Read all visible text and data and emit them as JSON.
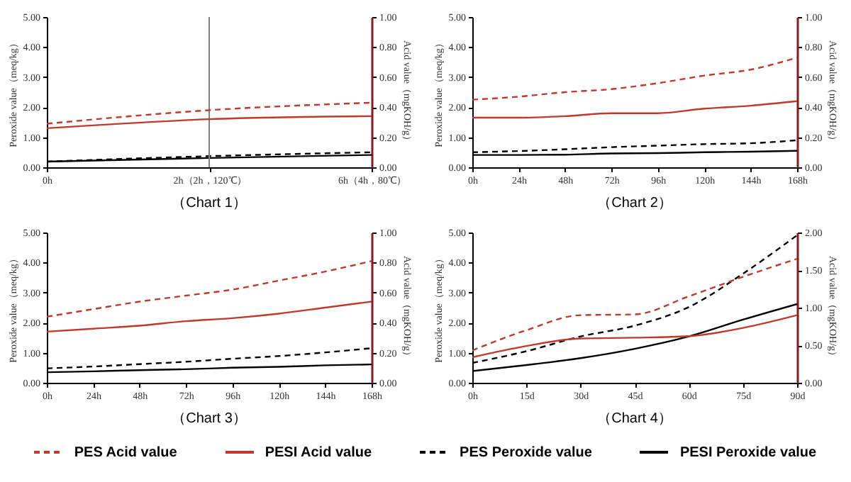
{
  "chart_data": [
    {
      "type": "line",
      "title": "（Chart 1）",
      "ylabel": "Peroxide value（meq/kg）",
      "y2label": "Acid value（mgKOH/g）",
      "categories": [
        "0h",
        "2h（2h，120℃）",
        "6h（4h，80℃）"
      ],
      "ylim": [
        0,
        5
      ],
      "yticks": [
        {
          "value": 0,
          "label": "0.00"
        },
        {
          "value": 1,
          "label": "1.00"
        },
        {
          "value": 2,
          "label": "2.00"
        },
        {
          "value": 3,
          "label": "3.00"
        },
        {
          "value": 4,
          "label": "4.00"
        },
        {
          "value": 5,
          "label": "5.00"
        }
      ],
      "y2lim": [
        0,
        1
      ],
      "y2ticks": [
        {
          "value": 0,
          "label": "0.00"
        },
        {
          "value": 0.2,
          "label": "0.20"
        },
        {
          "value": 0.4,
          "label": "0.40"
        },
        {
          "value": 0.6,
          "label": "0.60"
        },
        {
          "value": 0.8,
          "label": "0.80"
        },
        {
          "value": 1,
          "label": "1.00"
        }
      ],
      "grid": false,
      "legend": "bottom",
      "ref_lines": [
        {
          "axis": "x",
          "value": "2h（2h，120℃）",
          "color": "#808080"
        }
      ],
      "series": [
        {
          "name": "PES Acid value",
          "color": "#c0392b",
          "axis": "y2",
          "line_style": "dashed",
          "values": [
            0.29,
            0.38,
            0.43
          ]
        },
        {
          "name": "PESI Acid value",
          "color": "#c0392b",
          "axis": "y2",
          "line_style": "solid",
          "values": [
            0.26,
            0.32,
            0.34
          ]
        },
        {
          "name": "PES Peroxide value",
          "color": "#000000",
          "line_style": "dashed",
          "values": [
            0.19,
            0.37,
            0.5
          ]
        },
        {
          "name": "PESI Peroxide value",
          "color": "#000000",
          "line_style": "solid",
          "values": [
            0.19,
            0.31,
            0.41
          ]
        }
      ]
    },
    {
      "type": "line",
      "title": "（Chart 2）",
      "ylabel": "Peroxide value（meq/kg）",
      "y2label": "Acid value（mgKOH/g）",
      "categories": [
        "0h",
        "24h",
        "48h",
        "72h",
        "96h",
        "120h",
        "144h",
        "168h"
      ],
      "ylim": [
        0,
        5
      ],
      "yticks": [
        {
          "value": 0,
          "label": "0.00"
        },
        {
          "value": 1,
          "label": "1.00"
        },
        {
          "value": 2,
          "label": "2.00"
        },
        {
          "value": 3,
          "label": "3.00"
        },
        {
          "value": 4,
          "label": "4.00"
        },
        {
          "value": 5,
          "label": "5.00"
        }
      ],
      "y2lim": [
        0,
        1
      ],
      "y2ticks": [
        {
          "value": 0,
          "label": "0.00"
        },
        {
          "value": 0.2,
          "label": "0.20"
        },
        {
          "value": 0.4,
          "label": "0.40"
        },
        {
          "value": 0.6,
          "label": "0.60"
        },
        {
          "value": 0.8,
          "label": "0.80"
        },
        {
          "value": 1,
          "label": "1.00"
        }
      ],
      "grid": false,
      "legend": false,
      "series": [
        {
          "color": "#c0392b",
          "axis": "y2",
          "line_style": "dashed",
          "values": [
            0.45,
            0.47,
            0.5,
            0.52,
            0.56,
            0.61,
            0.65,
            0.73
          ]
        },
        {
          "color": "#c0392b",
          "axis": "y2",
          "line_style": "solid",
          "values": [
            0.33,
            0.33,
            0.34,
            0.36,
            0.36,
            0.39,
            0.41,
            0.44
          ]
        },
        {
          "color": "#000000",
          "line_style": "dashed",
          "values": [
            0.5,
            0.54,
            0.6,
            0.67,
            0.72,
            0.77,
            0.8,
            0.9
          ]
        },
        {
          "color": "#000000",
          "line_style": "solid",
          "values": [
            0.41,
            0.41,
            0.42,
            0.46,
            0.47,
            0.5,
            0.52,
            0.55
          ]
        }
      ]
    },
    {
      "type": "line",
      "title": "（Chart 3）",
      "ylabel": "Peroxide value（meq/kg）",
      "y2label": "Acid value（mgKOH/g）",
      "categories": [
        "0h",
        "24h",
        "48h",
        "72h",
        "96h",
        "120h",
        "144h",
        "168h"
      ],
      "ylim": [
        0,
        5
      ],
      "yticks": [
        {
          "value": 0,
          "label": "0.00"
        },
        {
          "value": 1,
          "label": "1.00"
        },
        {
          "value": 2,
          "label": "2.00"
        },
        {
          "value": 3,
          "label": "3.00"
        },
        {
          "value": 4,
          "label": "4.00"
        },
        {
          "value": 5,
          "label": "5.00"
        }
      ],
      "y2lim": [
        0,
        1
      ],
      "y2ticks": [
        {
          "value": 0,
          "label": "0.00"
        },
        {
          "value": 0.2,
          "label": "0.20"
        },
        {
          "value": 0.4,
          "label": "0.40"
        },
        {
          "value": 0.6,
          "label": "0.60"
        },
        {
          "value": 0.8,
          "label": "0.80"
        },
        {
          "value": 1,
          "label": "1.00"
        }
      ],
      "grid": false,
      "legend": false,
      "series": [
        {
          "color": "#c0392b",
          "axis": "y2",
          "line_style": "dashed",
          "values": [
            0.44,
            0.49,
            0.54,
            0.58,
            0.62,
            0.68,
            0.74,
            0.81
          ]
        },
        {
          "color": "#c0392b",
          "axis": "y2",
          "line_style": "solid",
          "values": [
            0.34,
            0.36,
            0.38,
            0.41,
            0.43,
            0.46,
            0.5,
            0.54
          ]
        },
        {
          "color": "#000000",
          "line_style": "dashed",
          "values": [
            0.48,
            0.54,
            0.62,
            0.7,
            0.8,
            0.89,
            1.01,
            1.15
          ]
        },
        {
          "color": "#000000",
          "line_style": "solid",
          "values": [
            0.35,
            0.38,
            0.42,
            0.45,
            0.5,
            0.53,
            0.58,
            0.61
          ]
        }
      ]
    },
    {
      "type": "line",
      "title": "（Chart 4）",
      "ylabel": "Peroxide value（meq/kg）",
      "y2label": "Acid value（mgKOH/g）",
      "categories": [
        "0h",
        "15d",
        "30d",
        "45d",
        "60d",
        "75d",
        "90d"
      ],
      "ylim": [
        0,
        5
      ],
      "yticks": [
        {
          "value": 0,
          "label": "0.00"
        },
        {
          "value": 1,
          "label": "1.00"
        },
        {
          "value": 2,
          "label": "2.00"
        },
        {
          "value": 3,
          "label": "3.00"
        },
        {
          "value": 4,
          "label": "4.00"
        },
        {
          "value": 5,
          "label": "5.00"
        }
      ],
      "y2lim": [
        0,
        2
      ],
      "y2ticks": [
        {
          "value": 0,
          "label": "0.00"
        },
        {
          "value": 0.5,
          "label": "0.50"
        },
        {
          "value": 1,
          "label": "1.00"
        },
        {
          "value": 1.5,
          "label": "1.50"
        },
        {
          "value": 2,
          "label": "2.00"
        }
      ],
      "grid": false,
      "series": [
        {
          "color": "#c0392b",
          "axis": "y2",
          "line_style": "dashed",
          "values": [
            0.43,
            0.7,
            0.9,
            0.91,
            1.15,
            1.41,
            1.65
          ]
        },
        {
          "color": "#c0392b",
          "axis": "y2",
          "line_style": "solid",
          "values": [
            0.34,
            0.49,
            0.59,
            0.6,
            0.62,
            0.73,
            0.9
          ]
        },
        {
          "color": "#000000",
          "line_style": "dashed",
          "values": [
            0.66,
            1.05,
            1.54,
            1.9,
            2.52,
            3.63,
            4.91
          ]
        },
        {
          "color": "#000000",
          "line_style": "solid",
          "values": [
            0.39,
            0.59,
            0.82,
            1.13,
            1.54,
            2.1,
            2.62
          ]
        }
      ]
    }
  ]
}
